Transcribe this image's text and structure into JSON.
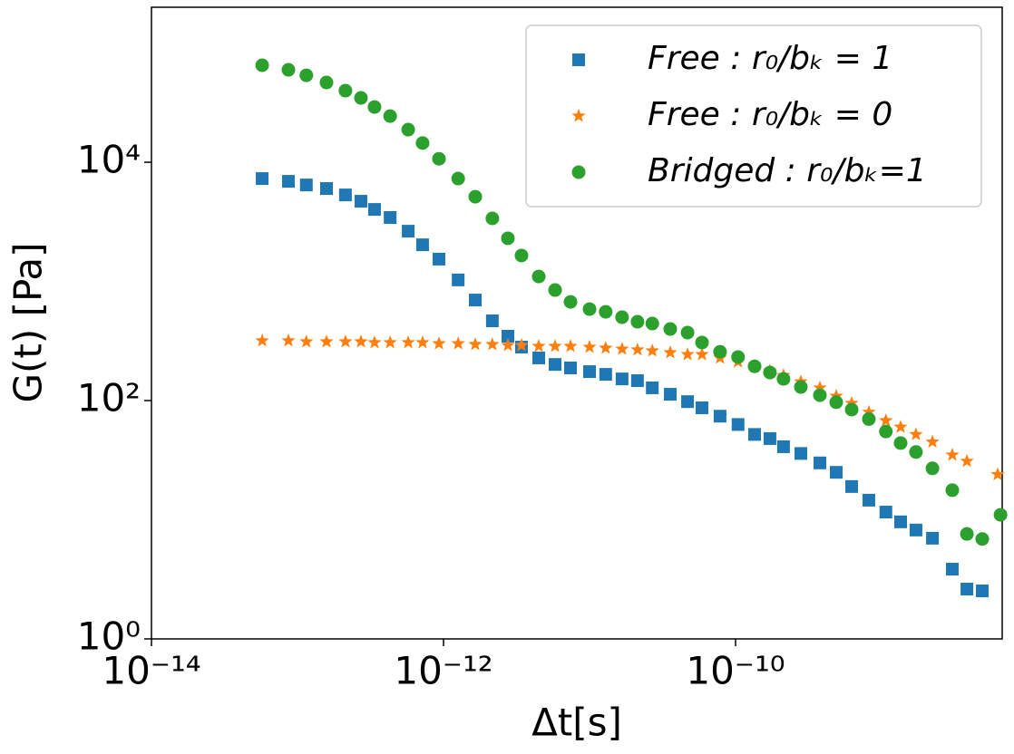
{
  "chart_data": {
    "type": "scatter",
    "x_label": "Δt[s]",
    "y_label": "G(t) [Pa]",
    "xscale": "log",
    "yscale": "log",
    "xlim": [
      1e-14,
      6.7e-09
    ],
    "ylim": [
      1,
      200000
    ],
    "xticks": [
      {
        "value": 1e-14,
        "label": "10⁻¹⁴"
      },
      {
        "value": 1e-12,
        "label": "10⁻¹²"
      },
      {
        "value": 1e-10,
        "label": "10⁻¹⁰"
      }
    ],
    "yticks": [
      {
        "value": 1,
        "label": "10⁰"
      },
      {
        "value": 100,
        "label": "10²"
      },
      {
        "value": 10000,
        "label": "10⁴"
      }
    ],
    "legend": "upper right",
    "series": [
      {
        "name": "Free : r₀/bₖ = 1",
        "color": "#1f77b4",
        "marker": "square",
        "x": [
          5.73e-14,
          8.67e-14,
          1.15e-13,
          1.58e-13,
          2.13e-13,
          2.72e-13,
          3.37e-13,
          4.31e-13,
          5.73e-13,
          7.19e-13,
          9.31e-13,
          1.26e-12,
          1.65e-12,
          2.16e-12,
          2.76e-12,
          3.42e-12,
          4.49e-12,
          5.81e-12,
          7.41e-12,
          1e-11,
          1.29e-11,
          1.67e-11,
          2.13e-11,
          2.69e-11,
          3.57e-11,
          4.69e-11,
          5.89e-11,
          7.83e-11,
          1.04e-10,
          1.35e-10,
          1.72e-10,
          2.13e-10,
          2.8e-10,
          3.78e-10,
          4.89e-10,
          6.24e-10,
          8.18e-10,
          1.07e-09,
          1.35e-09,
          1.72e-09,
          2.23e-09,
          3.05e-09,
          3.84e-09,
          4.89e-09
        ],
        "values": [
          7300,
          6920,
          6450,
          6020,
          5320,
          4710,
          4020,
          3440,
          2640,
          2030,
          1540,
          1030,
          698,
          467,
          347,
          281,
          228,
          201,
          188,
          175,
          166,
          152,
          147,
          128,
          113,
          98,
          87,
          74,
          63,
          52,
          48,
          41,
          36,
          30,
          25,
          19,
          14.6,
          11.6,
          9.6,
          8.2,
          7.0,
          3.85,
          2.62,
          2.53
        ]
      },
      {
        "name": "Free : r₀/bₖ = 0",
        "color": "#ff7f0e",
        "marker": "star",
        "x": [
          5.73e-14,
          8.67e-14,
          1.15e-13,
          1.58e-13,
          2.13e-13,
          2.72e-13,
          3.37e-13,
          4.31e-13,
          5.73e-13,
          7.19e-13,
          9.31e-13,
          1.26e-12,
          1.65e-12,
          2.16e-12,
          2.76e-12,
          3.42e-12,
          4.49e-12,
          5.81e-12,
          7.41e-12,
          1e-11,
          1.29e-11,
          1.67e-11,
          2.13e-11,
          2.69e-11,
          3.57e-11,
          4.69e-11,
          5.89e-11,
          7.83e-11,
          1.04e-10,
          1.35e-10,
          1.72e-10,
          2.13e-10,
          2.8e-10,
          3.78e-10,
          4.89e-10,
          6.24e-10,
          8.18e-10,
          1.07e-09,
          1.35e-09,
          1.72e-09,
          2.23e-09,
          3.05e-09,
          3.84e-09,
          6.24e-09
        ],
        "values": [
          318,
          318,
          312,
          312,
          312,
          312,
          307,
          307,
          307,
          307,
          301,
          301,
          296,
          296,
          291,
          291,
          286,
          286,
          286,
          281,
          276,
          271,
          267,
          262,
          253,
          244,
          244,
          228,
          212,
          191,
          178,
          163,
          144,
          128,
          109,
          95,
          80,
          68,
          60,
          52,
          45,
          35,
          31,
          24
        ]
      },
      {
        "name": "Bridged : r₀/bₖ=1",
        "color": "#2ca02c",
        "marker": "circle",
        "x": [
          5.73e-14,
          8.67e-14,
          1.15e-13,
          1.58e-13,
          2.13e-13,
          2.72e-13,
          3.37e-13,
          4.31e-13,
          5.73e-13,
          7.19e-13,
          9.31e-13,
          1.26e-12,
          1.65e-12,
          2.16e-12,
          2.76e-12,
          3.42e-12,
          4.49e-12,
          5.81e-12,
          7.41e-12,
          1e-11,
          1.29e-11,
          1.67e-11,
          2.13e-11,
          2.69e-11,
          3.57e-11,
          4.69e-11,
          5.89e-11,
          7.83e-11,
          1.04e-10,
          1.35e-10,
          1.72e-10,
          2.13e-10,
          2.8e-10,
          3.78e-10,
          4.89e-10,
          6.24e-10,
          8.18e-10,
          1.07e-09,
          1.35e-09,
          1.72e-09,
          2.23e-09,
          3.05e-09,
          3.84e-09,
          4.89e-09,
          6.52e-09
        ],
        "values": [
          65200,
          59700,
          53700,
          46700,
          39900,
          34700,
          29100,
          24400,
          18800,
          14500,
          10700,
          7300,
          5140,
          3380,
          2300,
          1650,
          1100,
          847,
          674,
          586,
          556,
          501,
          459,
          443,
          399,
          372,
          307,
          257,
          232,
          194,
          172,
          152,
          130,
          111,
          97,
          84,
          70,
          55,
          44,
          37,
          27,
          17.7,
          7.6,
          6.9,
          11
        ]
      }
    ]
  }
}
